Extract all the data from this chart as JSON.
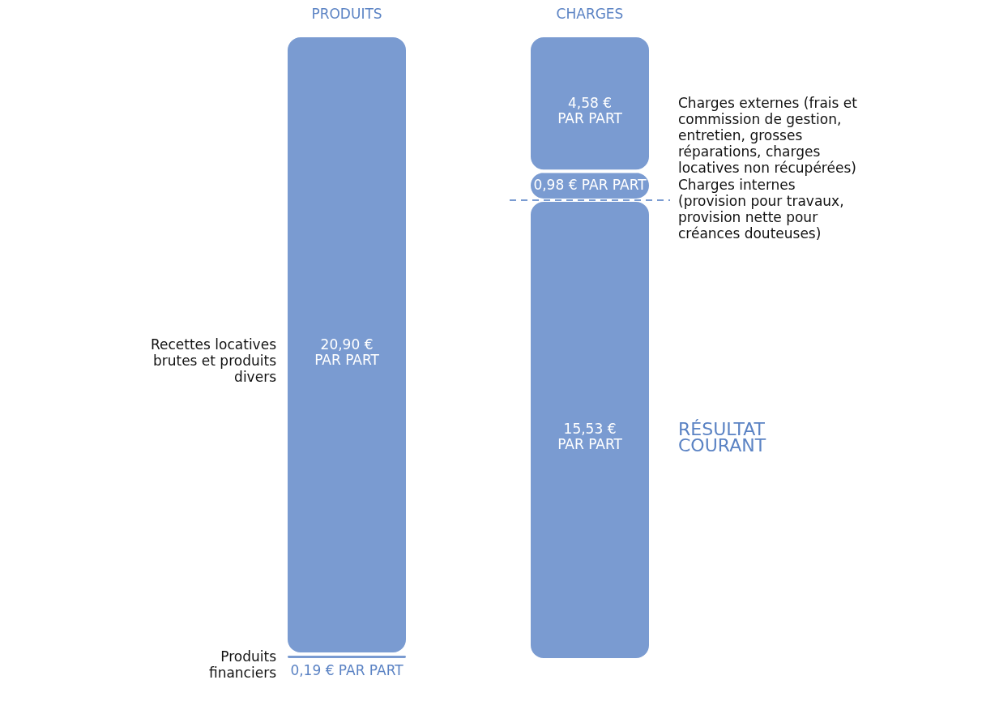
{
  "chart_data": {
    "type": "bar",
    "stacked": true,
    "categories": [
      "PRODUITS",
      "CHARGES"
    ],
    "series": [
      {
        "name": "Produits financiers",
        "color": "#7a9bd1",
        "values": [
          0.19,
          null
        ],
        "value_labels": [
          "0,19 € PAR PART",
          null
        ]
      },
      {
        "name": "Recettes locatives brutes et produits divers",
        "color": "#7a9bd1",
        "values": [
          20.9,
          null
        ],
        "value_labels": [
          "20,90 € PAR PART",
          null
        ]
      },
      {
        "name": "RÉSULTAT COURANT",
        "color": "#7a9bd1",
        "values": [
          null,
          15.53
        ],
        "value_labels": [
          null,
          "15,53 € PAR PART"
        ]
      },
      {
        "name": "Charges internes (provision pour travaux, provision nette pour créances douteuses)",
        "color": "#7a9bd1",
        "values": [
          null,
          0.98
        ],
        "value_labels": [
          null,
          "0,98 € PAR PART"
        ]
      },
      {
        "name": "Charges externes (frais et commission de gestion, entretien, grosses réparations, charges locatives non récupérées)",
        "color": "#7a9bd1",
        "values": [
          null,
          4.58
        ],
        "value_labels": [
          null,
          "4,58 € PAR PART"
        ]
      }
    ],
    "ref_lines": [
      {
        "axis": "y",
        "value": 15.53,
        "color": "#7a9bd1",
        "line_style": "dashed"
      }
    ]
  }
}
